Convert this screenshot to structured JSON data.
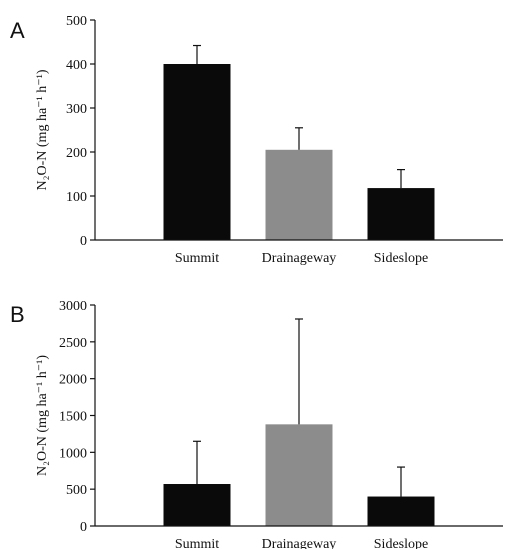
{
  "colors": {
    "bar_dark": "#0a0a0a",
    "bar_gray": "#8c8c8c"
  },
  "chart_data": [
    {
      "type": "bar",
      "panel": "A",
      "categories": [
        "Summit",
        "Drainageway",
        "Sideslope"
      ],
      "values": [
        400,
        205,
        118
      ],
      "errors": [
        42,
        50,
        42
      ],
      "bar_colors": [
        "bar_dark",
        "bar_gray",
        "bar_dark"
      ],
      "ylabel": "N₂O-N (mg ha⁻¹ h⁻¹)",
      "ylim": [
        0,
        500
      ],
      "yticks": [
        0,
        100,
        200,
        300,
        400,
        500
      ],
      "grid": false
    },
    {
      "type": "bar",
      "panel": "B",
      "categories": [
        "Summit",
        "Drainageway",
        "Sideslope"
      ],
      "values": [
        570,
        1380,
        400
      ],
      "errors": [
        580,
        1430,
        400
      ],
      "bar_colors": [
        "bar_dark",
        "bar_gray",
        "bar_dark"
      ],
      "ylabel": "N₂O-N (mg ha⁻¹ h⁻¹)",
      "ylim": [
        0,
        3000
      ],
      "yticks": [
        0,
        500,
        1000,
        1500,
        2000,
        2500,
        3000
      ],
      "grid": false
    }
  ]
}
